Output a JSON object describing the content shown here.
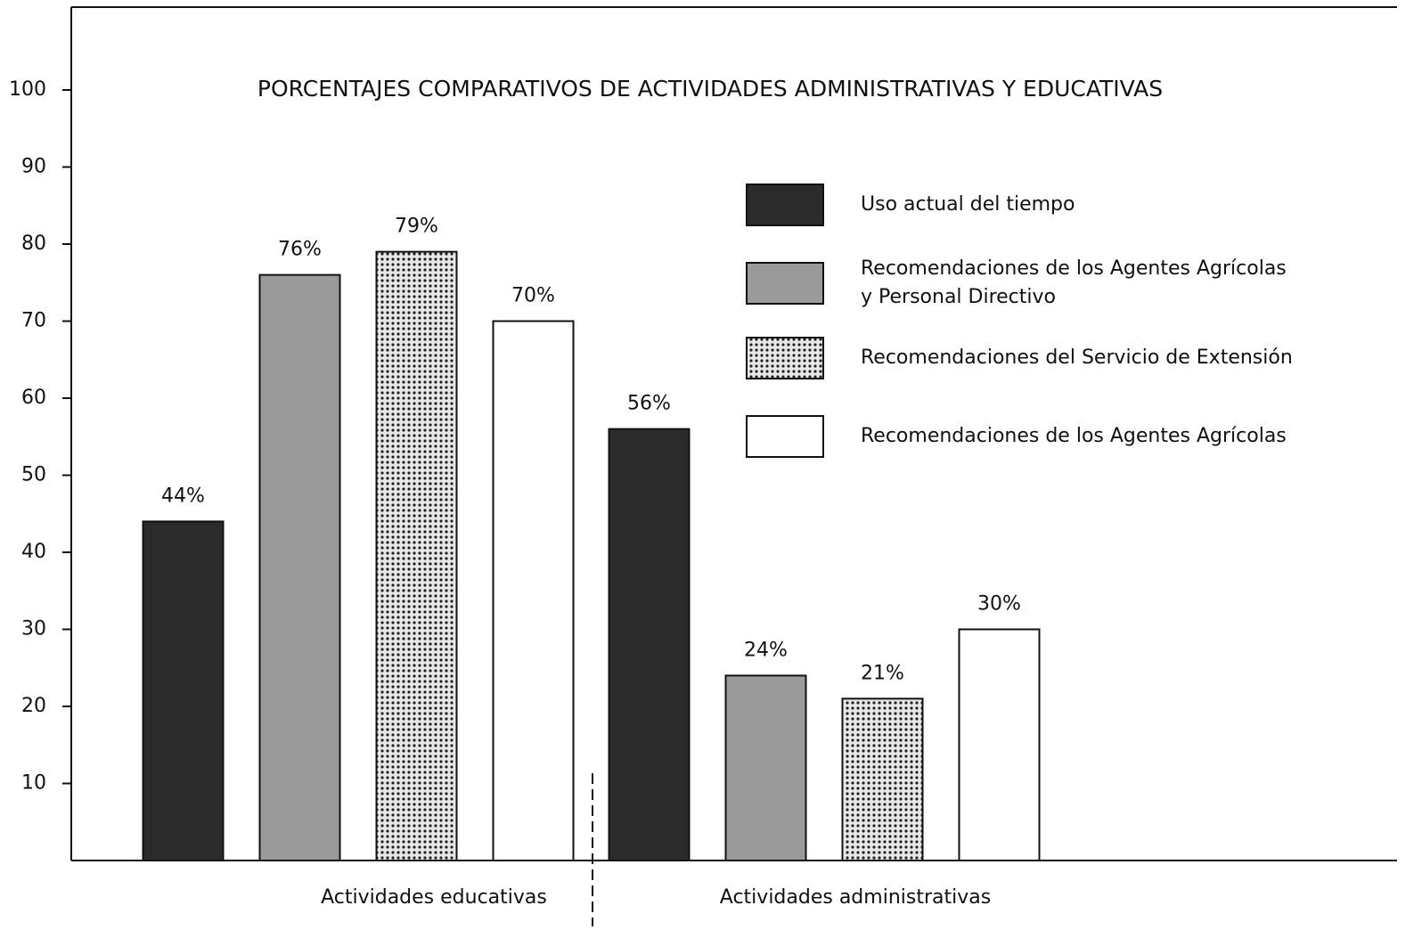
{
  "chart_data": {
    "type": "bar",
    "title": "PORCENTAJES COMPARATIVOS DE ACTIVIDADES ADMINISTRATIVAS Y EDUCATIVAS",
    "categories": [
      "Actividades educativas",
      "Actividades administrativas"
    ],
    "series": [
      {
        "name": "Uso actual del tiempo",
        "color": "#2b2b2b",
        "values": [
          44,
          56
        ],
        "value_labels": [
          "44%",
          "56%"
        ]
      },
      {
        "name": "Recomendaciones de los Agentes Agrícolas\ny Personal Directivo",
        "color": "#9a9a9a",
        "values": [
          76,
          24
        ],
        "value_labels": [
          "76%",
          "24%"
        ]
      },
      {
        "name": "Recomendaciones del Servicio de Extensión",
        "color": "#d4d4d4",
        "pattern": "dots",
        "values": [
          79,
          21
        ],
        "value_labels": [
          "79%",
          "21%"
        ]
      },
      {
        "name": "Recomendaciones de los Agentes Agrícolas",
        "color": "#ffffff",
        "values": [
          70,
          30
        ],
        "value_labels": [
          "70%",
          "30%"
        ]
      }
    ],
    "ylim": [
      0,
      100
    ],
    "yticks": [
      10,
      20,
      30,
      40,
      50,
      60,
      70,
      80,
      90,
      100
    ]
  }
}
